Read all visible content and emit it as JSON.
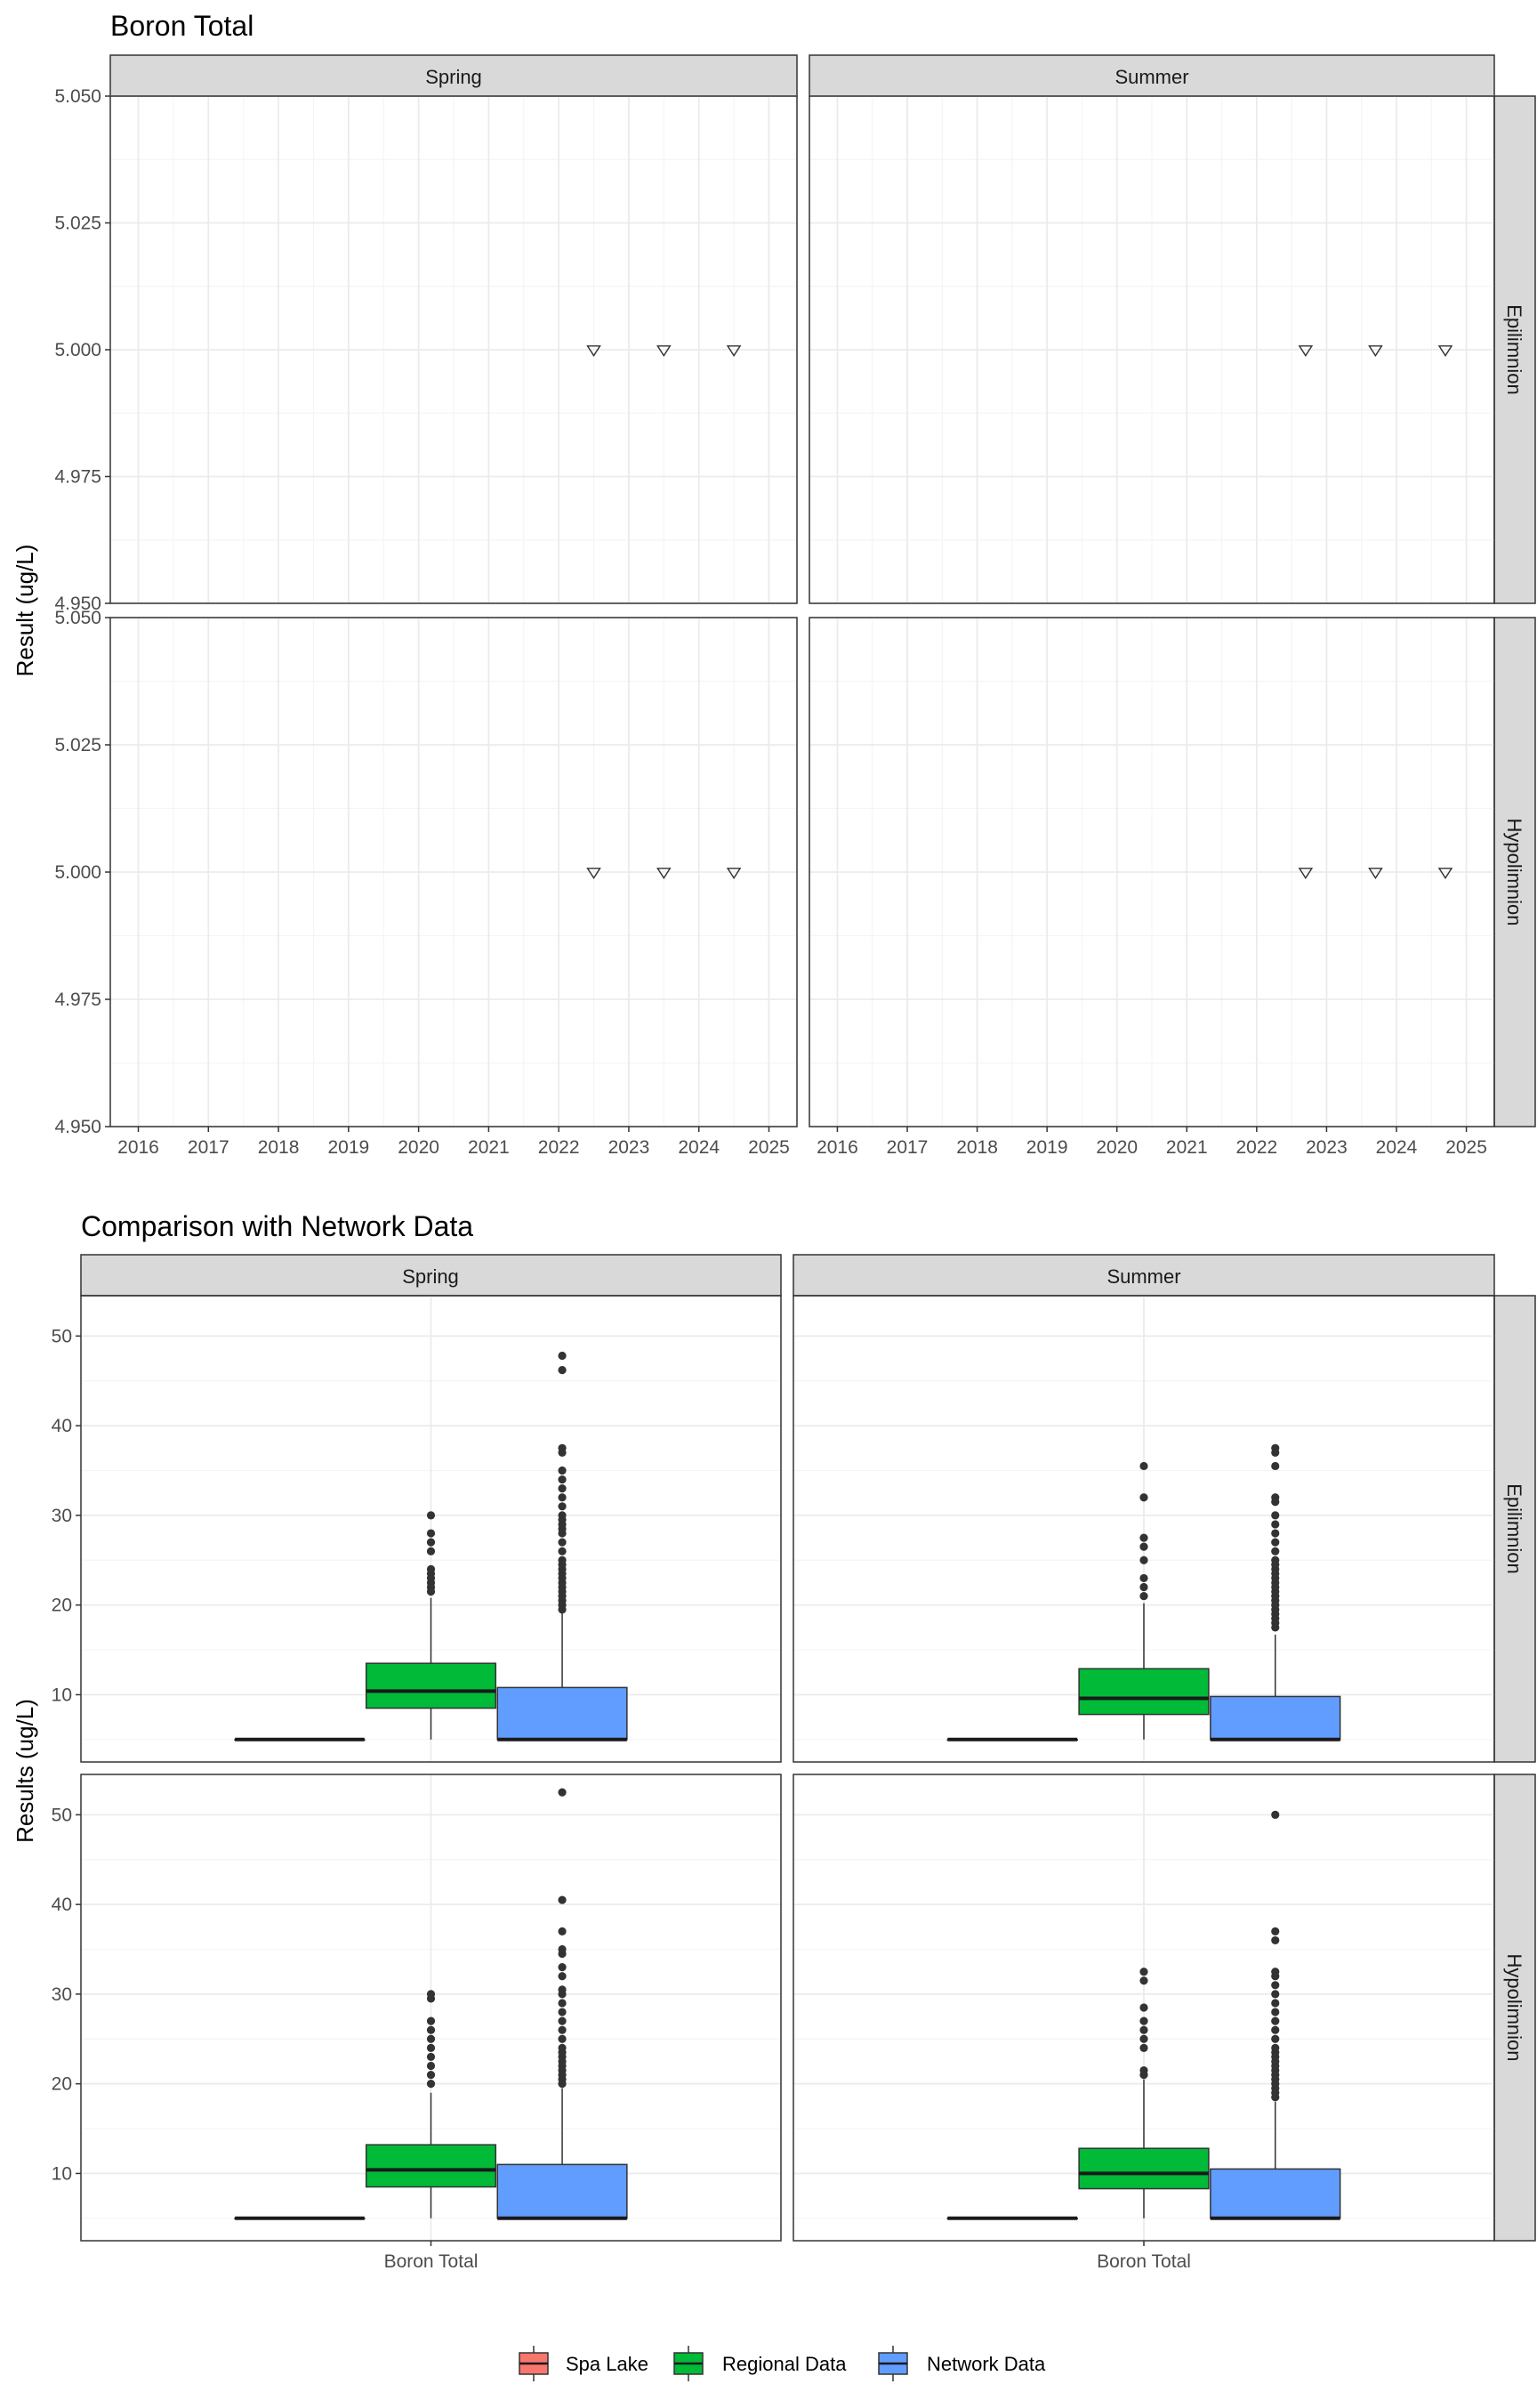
{
  "colors": {
    "strip_fill": "#d9d9d9",
    "panel_border": "#333333",
    "grid_major": "#ebebeb",
    "grid_minor": "#f5f5f5",
    "point": "#333333",
    "spa_lake": "#f8766d",
    "regional": "#00ba38",
    "network": "#619cff"
  },
  "chart_data": [
    {
      "type": "scatter",
      "title": "Boron Total",
      "xlabel": "",
      "ylabel": "Result (ug/L)",
      "facet_columns": [
        "Spring",
        "Summer"
      ],
      "facet_rows": [
        "Epilimnion",
        "Hypolimnion"
      ],
      "xlim": [
        2015.6,
        2025.4
      ],
      "x_ticks": [
        2016,
        2017,
        2018,
        2019,
        2020,
        2021,
        2022,
        2023,
        2024,
        2025
      ],
      "ylim": [
        4.95,
        5.05
      ],
      "y_ticks": [
        4.95,
        4.975,
        5.0,
        5.025,
        5.05
      ],
      "y_tick_labels": [
        "4.950",
        "4.975",
        "5.000",
        "5.025",
        "5.050"
      ],
      "marker": "open-down-triangle",
      "grid": true,
      "panels": [
        {
          "column": "Spring",
          "row": "Epilimnion",
          "x": [
            2022.5,
            2023.5,
            2024.5
          ],
          "y": [
            5.0,
            5.0,
            5.0
          ]
        },
        {
          "column": "Summer",
          "row": "Epilimnion",
          "x": [
            2022.7,
            2023.7,
            2024.7
          ],
          "y": [
            5.0,
            5.0,
            5.0
          ]
        },
        {
          "column": "Spring",
          "row": "Hypolimnion",
          "x": [
            2022.5,
            2023.5,
            2024.5
          ],
          "y": [
            5.0,
            5.0,
            5.0
          ]
        },
        {
          "column": "Summer",
          "row": "Hypolimnion",
          "x": [
            2022.7,
            2023.7,
            2024.7
          ],
          "y": [
            5.0,
            5.0,
            5.0
          ]
        }
      ]
    },
    {
      "type": "box",
      "title": "Comparison with Network Data",
      "xlabel": "",
      "ylabel": "Results (ug/L)",
      "facet_columns": [
        "Spring",
        "Summer"
      ],
      "facet_rows": [
        "Epilimnion",
        "Hypolimnion"
      ],
      "categories": [
        "Boron Total"
      ],
      "ylim": [
        2.5,
        54.5
      ],
      "y_ticks": [
        10,
        20,
        30,
        40,
        50
      ],
      "y_tick_labels": [
        "10",
        "20",
        "30",
        "40",
        "50"
      ],
      "grid": true,
      "legend": {
        "placement": "bottom",
        "entries": [
          {
            "key": "spa",
            "label": "Spa Lake"
          },
          {
            "key": "regional",
            "label": "Regional Data"
          },
          {
            "key": "network",
            "label": "Network Data"
          }
        ]
      },
      "panels": [
        {
          "column": "Spring",
          "row": "Epilimnion",
          "series": [
            {
              "key": "spa",
              "q1": 5,
              "median": 5,
              "q3": 5,
              "whisker_low": 5,
              "whisker_high": 5,
              "outliers": []
            },
            {
              "key": "regional",
              "q1": 8.5,
              "median": 10.4,
              "q3": 13.5,
              "whisker_low": 5,
              "whisker_high": 20.8,
              "outliers": [
                21.5,
                22,
                22.5,
                23,
                23.5,
                24,
                26,
                27,
                28,
                30
              ]
            },
            {
              "key": "network",
              "q1": 5,
              "median": 5,
              "q3": 10.8,
              "whisker_low": 5,
              "whisker_high": 19.3,
              "outliers": [
                19.5,
                20,
                20.5,
                21,
                21.5,
                22,
                22.5,
                23,
                23.5,
                24,
                24.5,
                25,
                26,
                27,
                28,
                28.5,
                29,
                29.5,
                30,
                31,
                32,
                33,
                34,
                35,
                37,
                37.5,
                46.2,
                47.8
              ]
            }
          ]
        },
        {
          "column": "Summer",
          "row": "Epilimnion",
          "series": [
            {
              "key": "spa",
              "q1": 5,
              "median": 5,
              "q3": 5,
              "whisker_low": 5,
              "whisker_high": 5,
              "outliers": []
            },
            {
              "key": "regional",
              "q1": 7.8,
              "median": 9.6,
              "q3": 12.9,
              "whisker_low": 5,
              "whisker_high": 20.2,
              "outliers": [
                21,
                22,
                23,
                25,
                26.5,
                27.5,
                32,
                35.5
              ]
            },
            {
              "key": "network",
              "q1": 5,
              "median": 5,
              "q3": 9.8,
              "whisker_low": 5,
              "whisker_high": 16.7,
              "outliers": [
                17.5,
                18,
                18.5,
                19,
                19.5,
                20,
                20.5,
                21,
                21.5,
                22,
                22.5,
                23,
                23.5,
                24,
                24.5,
                25,
                26,
                27,
                28,
                29,
                30,
                31.5,
                32,
                35.5,
                37,
                37.5
              ]
            }
          ]
        },
        {
          "column": "Spring",
          "row": "Hypolimnion",
          "series": [
            {
              "key": "spa",
              "q1": 5,
              "median": 5,
              "q3": 5,
              "whisker_low": 5,
              "whisker_high": 5,
              "outliers": []
            },
            {
              "key": "regional",
              "q1": 8.5,
              "median": 10.4,
              "q3": 13.2,
              "whisker_low": 5,
              "whisker_high": 19,
              "outliers": [
                20,
                21,
                22,
                23,
                24,
                25,
                26,
                27,
                29.5,
                30
              ]
            },
            {
              "key": "network",
              "q1": 5,
              "median": 5,
              "q3": 11,
              "whisker_low": 5,
              "whisker_high": 19.5,
              "outliers": [
                20,
                20.5,
                21,
                21.5,
                22,
                22.5,
                23,
                23.5,
                24,
                25,
                26,
                27,
                28,
                29,
                30,
                30.5,
                32,
                33,
                34.5,
                35,
                37,
                40.5,
                52.5
              ]
            }
          ]
        },
        {
          "column": "Summer",
          "row": "Hypolimnion",
          "series": [
            {
              "key": "spa",
              "q1": 5,
              "median": 5,
              "q3": 5,
              "whisker_low": 5,
              "whisker_high": 5,
              "outliers": []
            },
            {
              "key": "regional",
              "q1": 8.3,
              "median": 10,
              "q3": 12.8,
              "whisker_low": 5,
              "whisker_high": 20.5,
              "outliers": [
                21,
                21.5,
                24,
                25,
                26,
                27,
                28.5,
                31.5,
                32.5
              ]
            },
            {
              "key": "network",
              "q1": 5,
              "median": 5,
              "q3": 10.5,
              "whisker_low": 5,
              "whisker_high": 18,
              "outliers": [
                18.5,
                19,
                19.5,
                20,
                20.5,
                21,
                21.5,
                22,
                22.5,
                23,
                23.5,
                24,
                25,
                26,
                27,
                28,
                29,
                30,
                31,
                32,
                32.5,
                36,
                37,
                50
              ]
            }
          ]
        }
      ]
    }
  ]
}
